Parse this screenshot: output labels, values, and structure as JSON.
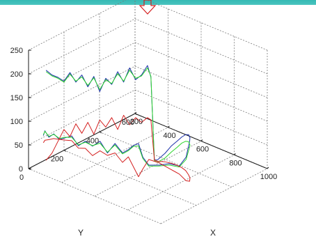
{
  "chart_data": {
    "type": "line3d",
    "title": "",
    "xlabel": "X",
    "ylabel": "Y",
    "zlabel": "",
    "xlim": [
      200,
      1000
    ],
    "ylim": [
      0,
      600
    ],
    "zlim": [
      0,
      250
    ],
    "x_ticks": [
      "200",
      "400",
      "600",
      "800",
      "1000"
    ],
    "y_ticks": [
      "0",
      "200",
      "400",
      "600"
    ],
    "z_ticks": [
      "0",
      "50",
      "100",
      "150",
      "200",
      "250"
    ],
    "grid": true,
    "series": [
      {
        "color": "#1a2fa8",
        "points": [
          [
            220,
            80,
            195
          ],
          [
            240,
            95,
            185
          ],
          [
            260,
            110,
            180
          ],
          [
            280,
            125,
            172
          ],
          [
            300,
            140,
            190
          ],
          [
            320,
            155,
            170
          ],
          [
            340,
            170,
            185
          ],
          [
            360,
            185,
            160
          ],
          [
            380,
            200,
            182
          ],
          [
            400,
            215,
            150
          ],
          [
            420,
            230,
            178
          ],
          [
            440,
            245,
            165
          ],
          [
            460,
            260,
            192
          ],
          [
            480,
            275,
            170
          ],
          [
            500,
            290,
            200
          ],
          [
            520,
            305,
            175
          ],
          [
            540,
            320,
            185
          ],
          [
            560,
            335,
            205
          ],
          [
            570,
            345,
            180
          ],
          [
            580,
            355,
            5
          ],
          [
            600,
            355,
            8
          ],
          [
            650,
            350,
            30
          ],
          [
            700,
            340,
            55
          ],
          [
            750,
            325,
            75
          ],
          [
            800,
            305,
            95
          ],
          [
            850,
            280,
            112
          ],
          [
            900,
            250,
            125
          ],
          [
            940,
            220,
            130
          ],
          [
            960,
            200,
            130
          ],
          [
            960,
            180,
            100
          ],
          [
            940,
            160,
            82
          ],
          [
            900,
            140,
            85
          ],
          [
            860,
            120,
            80
          ],
          [
            820,
            100,
            78
          ],
          [
            800,
            85,
            95
          ],
          [
            790,
            70,
            125
          ],
          [
            770,
            60,
            120
          ],
          [
            750,
            50,
            110
          ],
          [
            720,
            45,
            100
          ],
          [
            680,
            40,
            115
          ],
          [
            640,
            35,
            90
          ],
          [
            600,
            30,
            110
          ],
          [
            560,
            25,
            95
          ],
          [
            520,
            22,
            100
          ],
          [
            480,
            20,
            85
          ],
          [
            440,
            20,
            100
          ],
          [
            400,
            22,
            90
          ],
          [
            360,
            25,
            80
          ],
          [
            320,
            30,
            85
          ],
          [
            280,
            40,
            70
          ],
          [
            240,
            55,
            75
          ],
          [
            220,
            65,
            60
          ]
        ]
      },
      {
        "color": "#2bd62b",
        "points": [
          [
            220,
            80,
            192
          ],
          [
            240,
            95,
            183
          ],
          [
            260,
            110,
            178
          ],
          [
            280,
            125,
            170
          ],
          [
            300,
            140,
            187
          ],
          [
            320,
            155,
            172
          ],
          [
            340,
            170,
            181
          ],
          [
            360,
            185,
            163
          ],
          [
            380,
            200,
            179
          ],
          [
            400,
            215,
            154
          ],
          [
            420,
            230,
            175
          ],
          [
            440,
            245,
            167
          ],
          [
            460,
            260,
            188
          ],
          [
            480,
            275,
            172
          ],
          [
            500,
            290,
            195
          ],
          [
            520,
            305,
            178
          ],
          [
            540,
            320,
            183
          ],
          [
            560,
            335,
            200
          ],
          [
            570,
            345,
            182
          ],
          [
            580,
            355,
            3
          ],
          [
            600,
            355,
            3
          ],
          [
            650,
            350,
            20
          ],
          [
            700,
            340,
            42
          ],
          [
            750,
            325,
            62
          ],
          [
            800,
            305,
            82
          ],
          [
            850,
            280,
            98
          ],
          [
            900,
            250,
            110
          ],
          [
            940,
            220,
            115
          ],
          [
            960,
            200,
            118
          ],
          [
            960,
            180,
            95
          ],
          [
            940,
            160,
            80
          ],
          [
            900,
            140,
            82
          ],
          [
            860,
            120,
            78
          ],
          [
            820,
            100,
            76
          ],
          [
            800,
            85,
            92
          ],
          [
            790,
            70,
            120
          ],
          [
            770,
            60,
            118
          ],
          [
            750,
            50,
            108
          ],
          [
            720,
            45,
            98
          ],
          [
            680,
            40,
            112
          ],
          [
            640,
            35,
            92
          ],
          [
            600,
            30,
            106
          ],
          [
            560,
            25,
            96
          ],
          [
            520,
            22,
            98
          ],
          [
            480,
            20,
            87
          ],
          [
            440,
            20,
            97
          ],
          [
            400,
            22,
            91
          ],
          [
            360,
            25,
            82
          ],
          [
            320,
            30,
            84
          ],
          [
            280,
            40,
            72
          ],
          [
            240,
            55,
            74
          ],
          [
            220,
            65,
            62
          ]
        ]
      },
      {
        "color": "#d42020",
        "points": [
          [
            220,
            80,
            5
          ],
          [
            240,
            95,
            20
          ],
          [
            260,
            110,
            45
          ],
          [
            280,
            125,
            70
          ],
          [
            300,
            140,
            55
          ],
          [
            320,
            155,
            82
          ],
          [
            340,
            170,
            62
          ],
          [
            360,
            185,
            85
          ],
          [
            380,
            200,
            60
          ],
          [
            400,
            215,
            90
          ],
          [
            420,
            230,
            75
          ],
          [
            440,
            245,
            95
          ],
          [
            460,
            260,
            70
          ],
          [
            480,
            275,
            100
          ],
          [
            500,
            290,
            80
          ],
          [
            520,
            305,
            95
          ],
          [
            540,
            320,
            85
          ],
          [
            560,
            335,
            95
          ],
          [
            570,
            345,
            90
          ],
          [
            580,
            355,
            5
          ],
          [
            600,
            355,
            5
          ],
          [
            650,
            350,
            12
          ],
          [
            700,
            340,
            18
          ],
          [
            750,
            325,
            24
          ],
          [
            800,
            305,
            30
          ],
          [
            850,
            280,
            36
          ],
          [
            900,
            250,
            40
          ],
          [
            940,
            220,
            45
          ],
          [
            960,
            200,
            45
          ],
          [
            960,
            180,
            50
          ],
          [
            940,
            160,
            65
          ],
          [
            900,
            140,
            75
          ],
          [
            860,
            120,
            85
          ],
          [
            820,
            100,
            90
          ],
          [
            800,
            85,
            70
          ],
          [
            790,
            70,
            55
          ],
          [
            770,
            60,
            75
          ],
          [
            750,
            50,
            95
          ],
          [
            720,
            45,
            80
          ],
          [
            680,
            40,
            95
          ],
          [
            640,
            35,
            85
          ],
          [
            600,
            30,
            90
          ],
          [
            560,
            25,
            75
          ],
          [
            520,
            22,
            85
          ],
          [
            480,
            20,
            80
          ],
          [
            440,
            20,
            90
          ],
          [
            400,
            22,
            85
          ],
          [
            360,
            25,
            80
          ],
          [
            320,
            30,
            75
          ],
          [
            280,
            40,
            65
          ],
          [
            240,
            55,
            55
          ],
          [
            220,
            65,
            45
          ]
        ]
      }
    ]
  }
}
